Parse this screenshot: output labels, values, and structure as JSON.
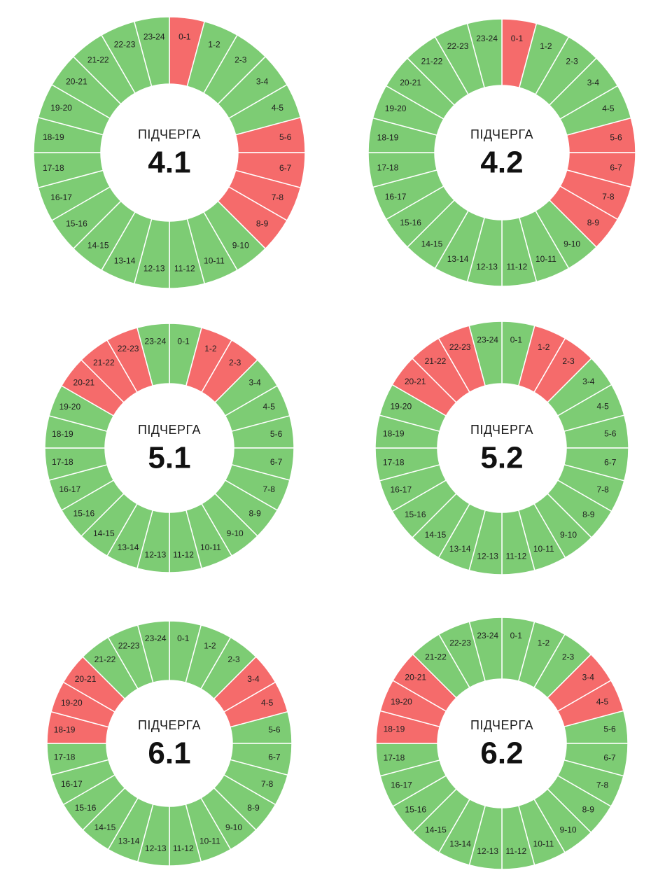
{
  "colors": {
    "on": "#7dcc74",
    "off": "#f56b6b",
    "divider": "#ffffff"
  },
  "hours": [
    "0-1",
    "1-2",
    "2-3",
    "3-4",
    "4-5",
    "5-6",
    "6-7",
    "7-8",
    "8-9",
    "9-10",
    "10-11",
    "11-12",
    "12-13",
    "13-14",
    "14-15",
    "15-16",
    "16-17",
    "17-18",
    "18-19",
    "19-20",
    "20-21",
    "21-22",
    "22-23",
    "23-24"
  ],
  "chart_data": [
    {
      "type": "pie",
      "caption": "ПІДЧЕРГА",
      "queue": "4.1",
      "off_hours": [
        "0-1",
        "5-6",
        "6-7",
        "7-8",
        "8-9"
      ]
    },
    {
      "type": "pie",
      "caption": "ПІДЧЕРГА",
      "queue": "4.2",
      "off_hours": [
        "0-1",
        "5-6",
        "6-7",
        "7-8",
        "8-9"
      ]
    },
    {
      "type": "pie",
      "caption": "ПІДЧЕРГА",
      "queue": "5.1",
      "off_hours": [
        "1-2",
        "2-3",
        "20-21",
        "21-22",
        "22-23"
      ]
    },
    {
      "type": "pie",
      "caption": "ПІДЧЕРГА",
      "queue": "5.2",
      "off_hours": [
        "1-2",
        "2-3",
        "20-21",
        "21-22",
        "22-23"
      ]
    },
    {
      "type": "pie",
      "caption": "ПІДЧЕРГА",
      "queue": "6.1",
      "off_hours": [
        "3-4",
        "4-5",
        "18-19",
        "19-20",
        "20-21"
      ]
    },
    {
      "type": "pie",
      "caption": "ПІДЧЕРГА",
      "queue": "6.2",
      "off_hours": [
        "3-4",
        "4-5",
        "18-19",
        "19-20",
        "20-21"
      ]
    }
  ]
}
